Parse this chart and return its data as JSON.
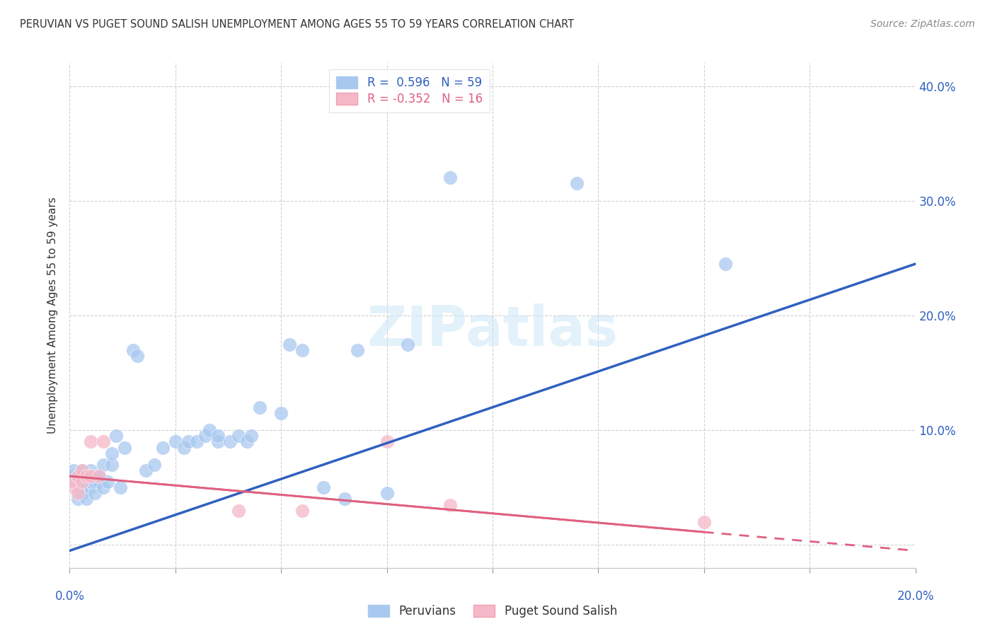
{
  "title": "PERUVIAN VS PUGET SOUND SALISH UNEMPLOYMENT AMONG AGES 55 TO 59 YEARS CORRELATION CHART",
  "source": "Source: ZipAtlas.com",
  "ylabel": "Unemployment Among Ages 55 to 59 years",
  "blue_color": "#A8C8F0",
  "pink_color": "#F5B8C8",
  "blue_line_color": "#3060C0",
  "pink_line_color": "#E06080",
  "xlim": [
    0.0,
    0.2
  ],
  "ylim": [
    -0.02,
    0.42
  ],
  "ytick_values": [
    0.0,
    0.1,
    0.2,
    0.3,
    0.4
  ],
  "xtick_values": [
    0.0,
    0.025,
    0.05,
    0.075,
    0.1,
    0.125,
    0.15,
    0.175,
    0.2
  ],
  "blue_trend_x": [
    0.0,
    0.2
  ],
  "blue_trend_y": [
    -0.005,
    0.245
  ],
  "pink_trend_x": [
    0.0,
    0.2
  ],
  "pink_trend_y": [
    0.06,
    -0.005
  ],
  "peruvian_x": [
    0.001,
    0.001,
    0.001,
    0.002,
    0.002,
    0.002,
    0.002,
    0.003,
    0.003,
    0.003,
    0.003,
    0.004,
    0.004,
    0.004,
    0.005,
    0.005,
    0.005,
    0.006,
    0.006,
    0.006,
    0.007,
    0.007,
    0.008,
    0.008,
    0.009,
    0.01,
    0.01,
    0.011,
    0.012,
    0.013,
    0.015,
    0.016,
    0.018,
    0.02,
    0.022,
    0.025,
    0.027,
    0.028,
    0.03,
    0.032,
    0.033,
    0.035,
    0.035,
    0.038,
    0.04,
    0.042,
    0.043,
    0.045,
    0.05,
    0.052,
    0.055,
    0.06,
    0.065,
    0.068,
    0.075,
    0.08,
    0.09,
    0.12,
    0.155
  ],
  "peruvian_y": [
    0.055,
    0.06,
    0.065,
    0.04,
    0.05,
    0.055,
    0.06,
    0.045,
    0.055,
    0.06,
    0.065,
    0.04,
    0.055,
    0.06,
    0.05,
    0.055,
    0.065,
    0.045,
    0.055,
    0.06,
    0.055,
    0.06,
    0.05,
    0.07,
    0.055,
    0.07,
    0.08,
    0.095,
    0.05,
    0.085,
    0.17,
    0.165,
    0.065,
    0.07,
    0.085,
    0.09,
    0.085,
    0.09,
    0.09,
    0.095,
    0.1,
    0.09,
    0.095,
    0.09,
    0.095,
    0.09,
    0.095,
    0.12,
    0.115,
    0.175,
    0.17,
    0.05,
    0.04,
    0.17,
    0.045,
    0.175,
    0.32,
    0.315,
    0.245
  ],
  "salish_x": [
    0.001,
    0.001,
    0.002,
    0.002,
    0.003,
    0.003,
    0.004,
    0.005,
    0.005,
    0.007,
    0.008,
    0.04,
    0.055,
    0.075,
    0.09,
    0.15
  ],
  "salish_y": [
    0.05,
    0.055,
    0.045,
    0.06,
    0.055,
    0.065,
    0.06,
    0.06,
    0.09,
    0.06,
    0.09,
    0.03,
    0.03,
    0.09,
    0.035,
    0.02
  ]
}
